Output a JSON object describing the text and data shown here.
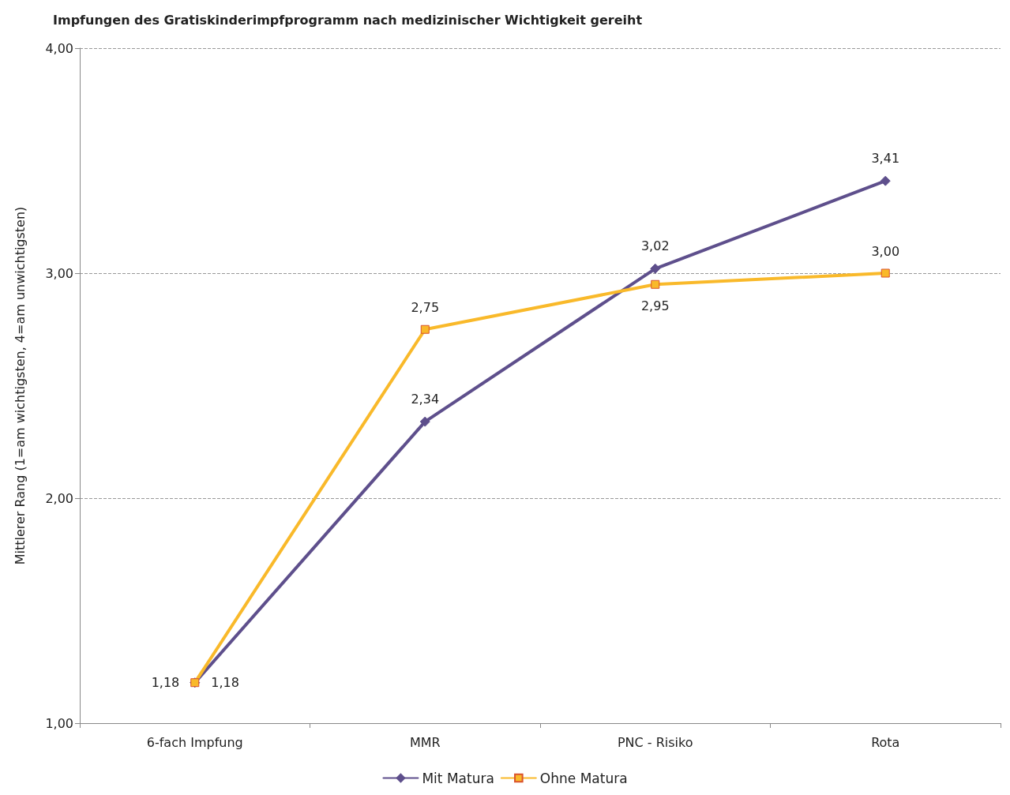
{
  "chart_data": {
    "type": "line",
    "title": "Impfungen des Gratiskinderimpfprogramm nach medizinischer Wichtigkeit gereiht",
    "ylabel": "Mittlerer Rang (1=am wichtigsten, 4=am unwichtigsten)",
    "categories": [
      "6-fach Impfung",
      "MMR",
      "PNC - Risiko",
      "Rota"
    ],
    "series": [
      {
        "name": "Mit Matura",
        "color": "#5e4f8c",
        "marker": "diamond",
        "values": [
          1.18,
          2.34,
          3.02,
          3.41
        ],
        "value_labels": [
          "1,18",
          "2,34",
          "3,02",
          "3,41"
        ]
      },
      {
        "name": "Ohne Matura",
        "color": "#f9b92a",
        "marker": "square",
        "values": [
          1.18,
          2.75,
          2.95,
          3.0
        ],
        "value_labels": [
          "1,18",
          "2,75",
          "2,95",
          "3,00"
        ]
      }
    ],
    "ylim": [
      1,
      4
    ],
    "yticks": [
      {
        "value": 1,
        "label": "1,00"
      },
      {
        "value": 2,
        "label": "2,00"
      },
      {
        "value": 3,
        "label": "3,00"
      },
      {
        "value": 4,
        "label": "4,00"
      }
    ],
    "grid": "y",
    "legend": "bottom",
    "line_style": "solid"
  }
}
